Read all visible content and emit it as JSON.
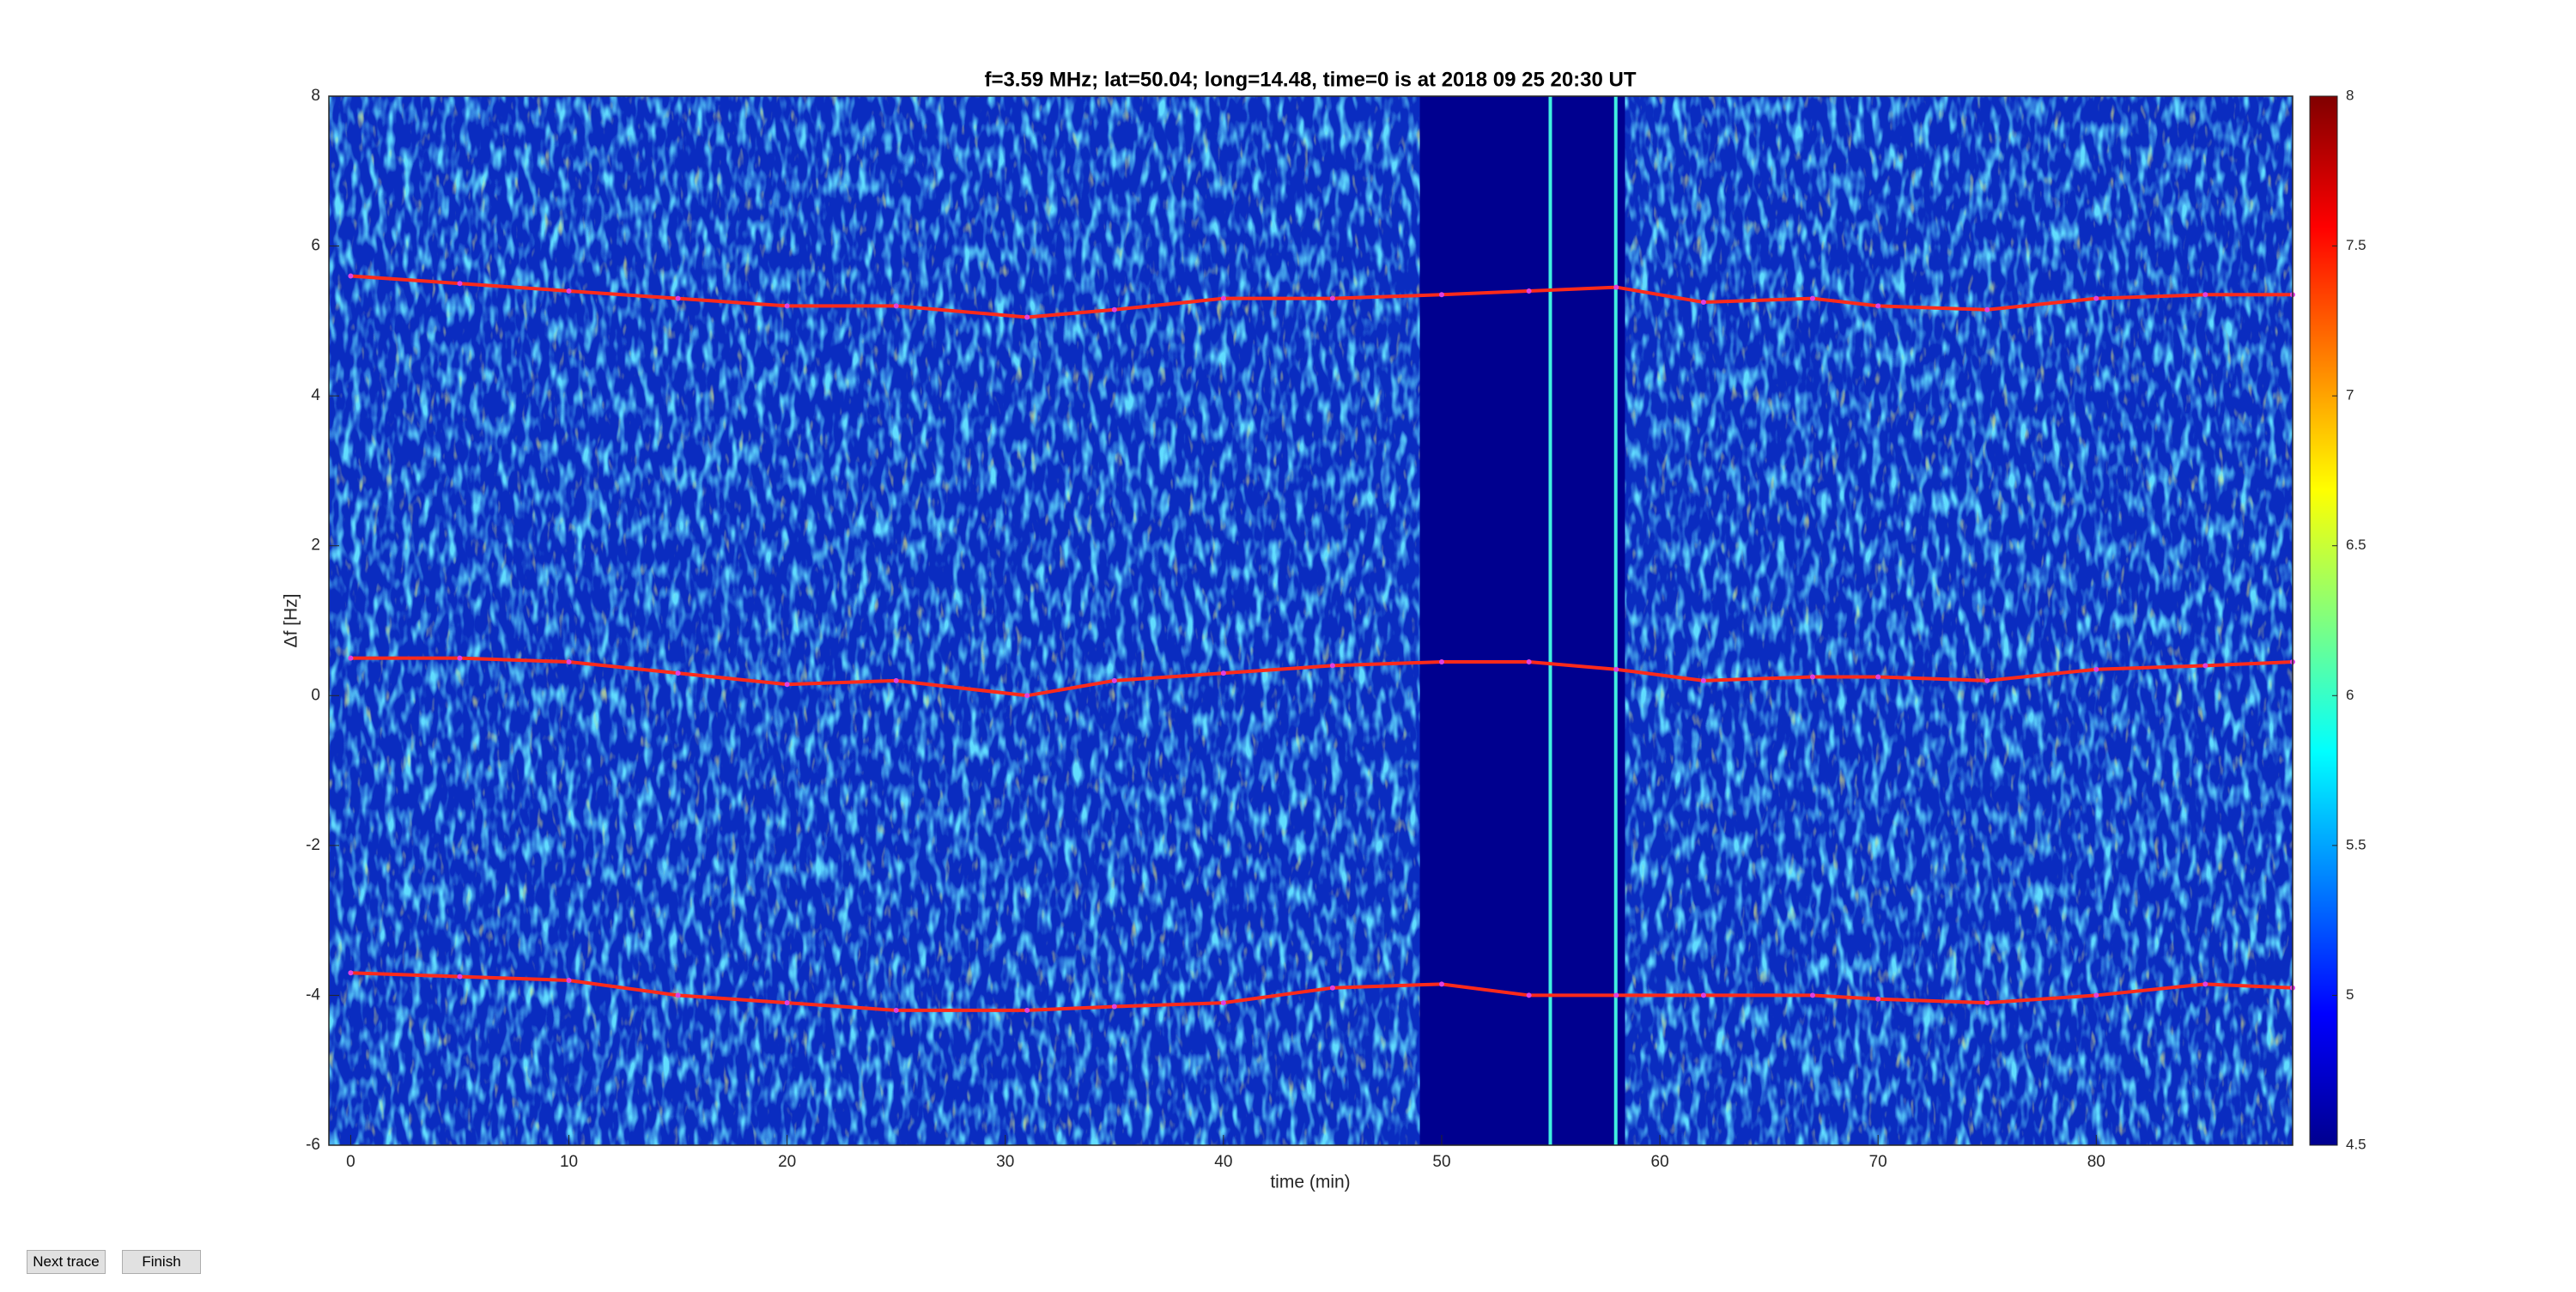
{
  "chart_data": {
    "type": "spectrogram",
    "title": "f=3.59 MHz;  lat=50.04; long=14.48, time=0 is at 2018 09 25 20:30 UT",
    "xlabel": "time (min)",
    "ylabel": "Δf [Hz]",
    "xlim": [
      -1,
      89
    ],
    "ylim": [
      -6,
      8
    ],
    "xticks": [
      0,
      10,
      20,
      30,
      40,
      50,
      60,
      70,
      80
    ],
    "yticks": [
      -6,
      -4,
      -2,
      0,
      2,
      4,
      6,
      8
    ],
    "clim": [
      4.5,
      8
    ],
    "cticks": [
      4.5,
      5,
      5.5,
      6,
      6.5,
      7,
      7.5,
      8
    ],
    "x": [
      0,
      5,
      10,
      15,
      20,
      25,
      31,
      35,
      40,
      45,
      50,
      54,
      58,
      62,
      67,
      70,
      75,
      80,
      85,
      89
    ],
    "series": [
      {
        "color": "#ff2a1a",
        "values": [
          5.6,
          5.5,
          5.4,
          5.3,
          5.2,
          5.2,
          5.05,
          5.15,
          5.3,
          5.3,
          5.35,
          5.4,
          5.45,
          5.25,
          5.3,
          5.2,
          5.15,
          5.3,
          5.35,
          5.35
        ]
      },
      {
        "color": "#ff2a1a",
        "values": [
          0.5,
          0.5,
          0.45,
          0.3,
          0.15,
          0.2,
          0.0,
          0.2,
          0.3,
          0.4,
          0.45,
          0.45,
          0.35,
          0.2,
          0.25,
          0.25,
          0.2,
          0.35,
          0.4,
          0.45
        ]
      },
      {
        "color": "#ff2a1a",
        "values": [
          -3.7,
          -3.75,
          -3.8,
          -4.0,
          -4.1,
          -4.2,
          -4.2,
          -4.15,
          -4.1,
          -3.9,
          -3.85,
          -4.0,
          -4.0,
          -4.0,
          -4.0,
          -4.05,
          -4.1,
          -4.0,
          -3.85,
          -3.9
        ]
      }
    ]
  },
  "buttons": [
    "Next trace",
    "Finish"
  ]
}
